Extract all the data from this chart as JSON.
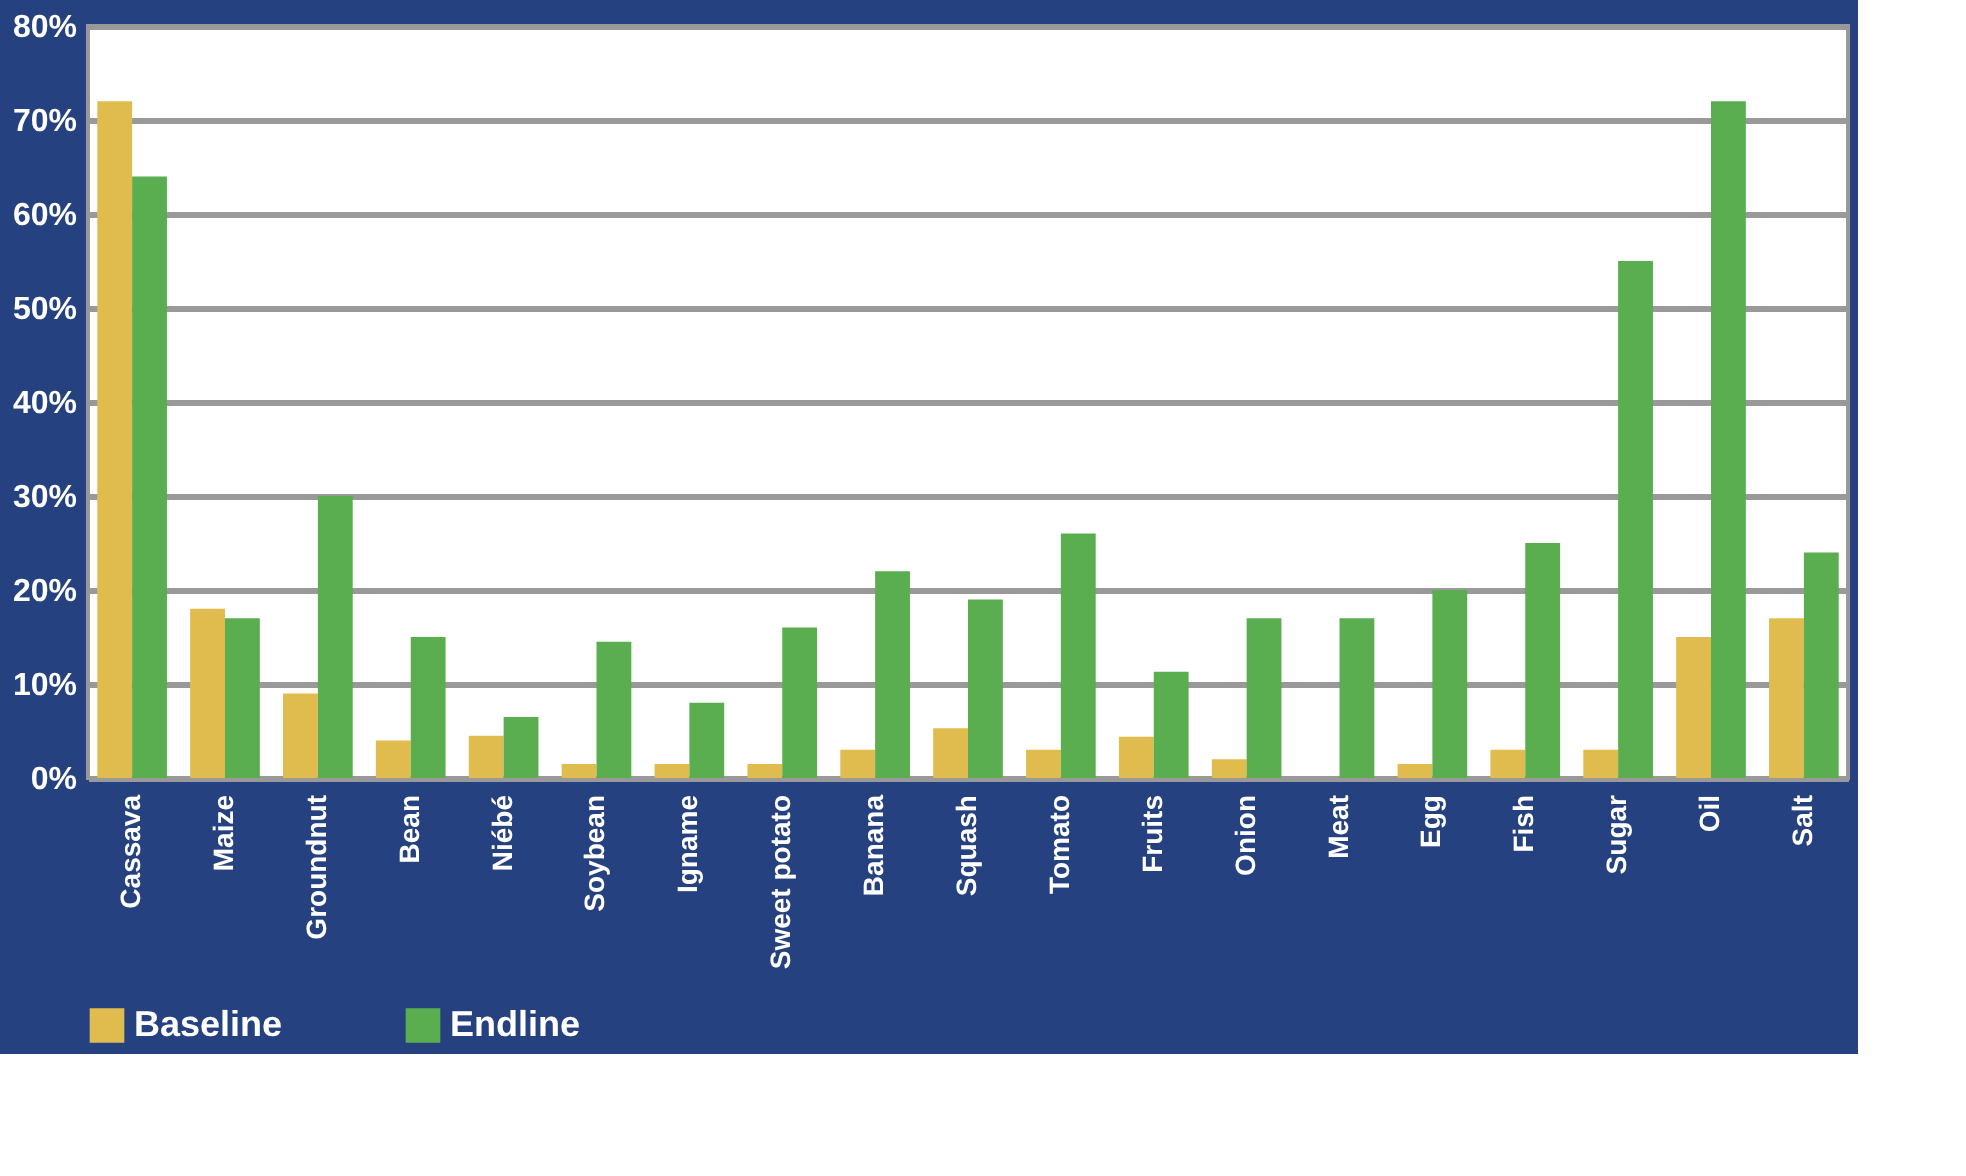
{
  "chart_data": {
    "type": "bar",
    "categories": [
      "Cassava",
      "Maize",
      "Groundnut",
      "Bean",
      "Niébé",
      "Soybean",
      "Igname",
      "Sweet potato",
      "Banana",
      "Squash",
      "Tomato",
      "Fruits",
      "Onion",
      "Meat",
      "Egg",
      "Fish",
      "Sugar",
      "Oil",
      "Salt"
    ],
    "series": [
      {
        "name": "Baseline",
        "color": "#e0bc4f",
        "values": [
          72,
          18,
          9,
          4,
          4.5,
          1.5,
          1.5,
          1.5,
          3,
          5.3,
          3,
          4.4,
          2,
          0,
          1.5,
          3,
          3,
          15,
          17
        ]
      },
      {
        "name": "Endline",
        "color": "#5aae4f",
        "values": [
          64,
          17,
          30,
          15,
          6.5,
          14.5,
          8,
          16,
          22,
          19,
          26,
          11.3,
          17,
          17,
          20,
          25,
          55,
          72,
          24
        ]
      }
    ],
    "ylim": [
      0,
      80
    ],
    "yticks": [
      {
        "value": 0,
        "label": "0%"
      },
      {
        "value": 10,
        "label": "10%"
      },
      {
        "value": 20,
        "label": "20%"
      },
      {
        "value": 30,
        "label": "30%"
      },
      {
        "value": 40,
        "label": "40%"
      },
      {
        "value": 50,
        "label": "50%"
      },
      {
        "value": 60,
        "label": "60%"
      },
      {
        "value": 70,
        "label": "70%"
      },
      {
        "value": 80,
        "label": "80%"
      }
    ],
    "grid": "y",
    "legend": "bottom"
  }
}
